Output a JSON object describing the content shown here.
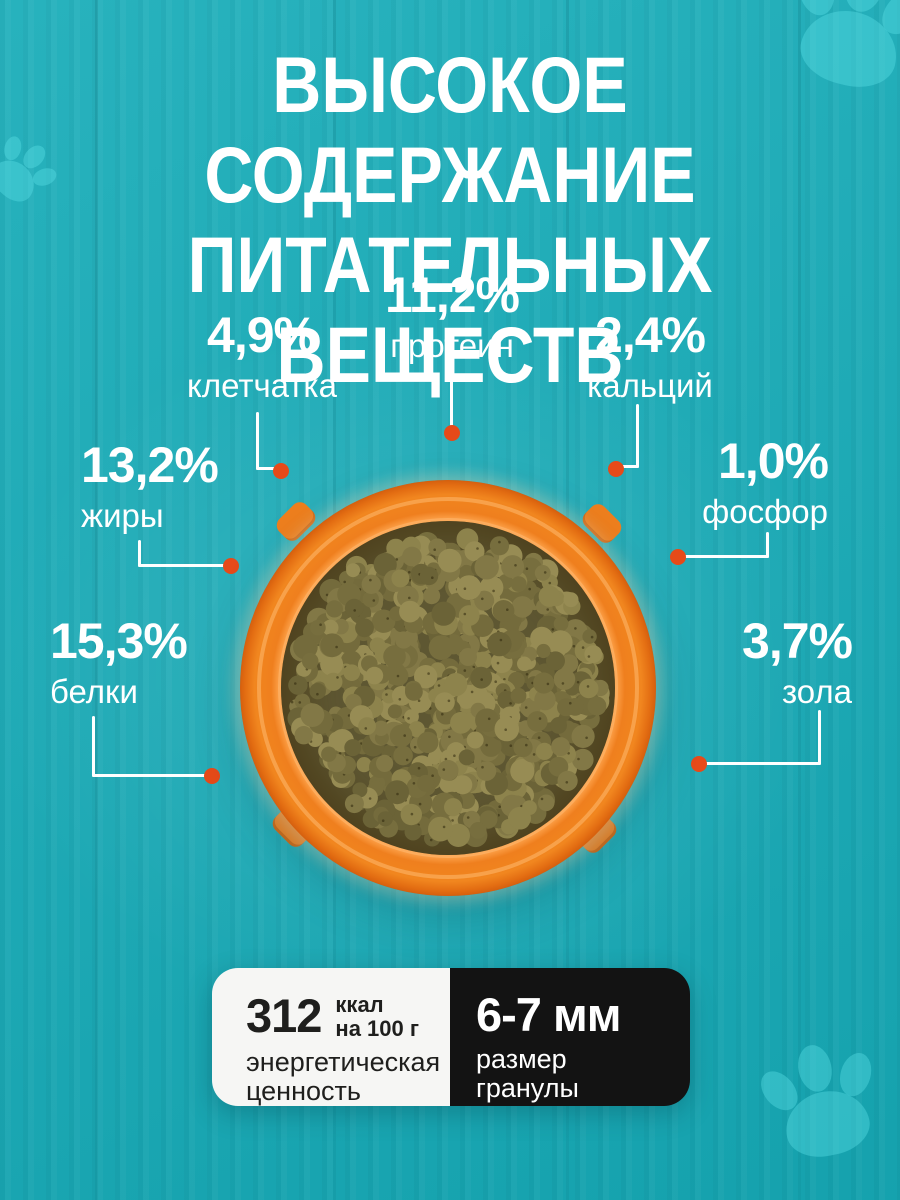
{
  "title": {
    "line1": "ВЫСОКОЕ СОДЕРЖАНИЕ",
    "line2": "ПИТАТЕЛЬНЫХ ВЕЩЕСТВ"
  },
  "nutrients": [
    {
      "id": "protein",
      "value": "11,2%",
      "label": "протеин"
    },
    {
      "id": "fiber",
      "value": "4,9%",
      "label": "клетчатка"
    },
    {
      "id": "calcium",
      "value": "2,4%",
      "label": "кальций"
    },
    {
      "id": "fats",
      "value": "13,2%",
      "label": "жиры"
    },
    {
      "id": "phosphorus",
      "value": "1,0%",
      "label": "фосфор"
    },
    {
      "id": "proteins",
      "value": "15,3%",
      "label": "белки"
    },
    {
      "id": "ash",
      "value": "3,7%",
      "label": "зола"
    }
  ],
  "energy_card": {
    "value": "312",
    "unit_line1": "ккал",
    "unit_line2": "на 100 г",
    "label_line1": "энергетическая",
    "label_line2": "ценность"
  },
  "granule_card": {
    "value": "6-7 мм",
    "label_line1": "размер",
    "label_line2": "гранулы"
  },
  "colors": {
    "background": "#17acb8",
    "paw": "#57dde4",
    "accent_orange": "#ee7f1e",
    "callout_dot": "#e64a19",
    "line_white": "#ffffff",
    "card_light_bg": "#f6f6f4",
    "card_dark_bg": "#131313",
    "card_text_dark": "#1f1f1d",
    "card_text_light": "#ffffff",
    "kibble_palette": [
      "#6b6337",
      "#776e3e",
      "#827846",
      "#8d834c",
      "#978c54",
      "#746b3c"
    ]
  }
}
